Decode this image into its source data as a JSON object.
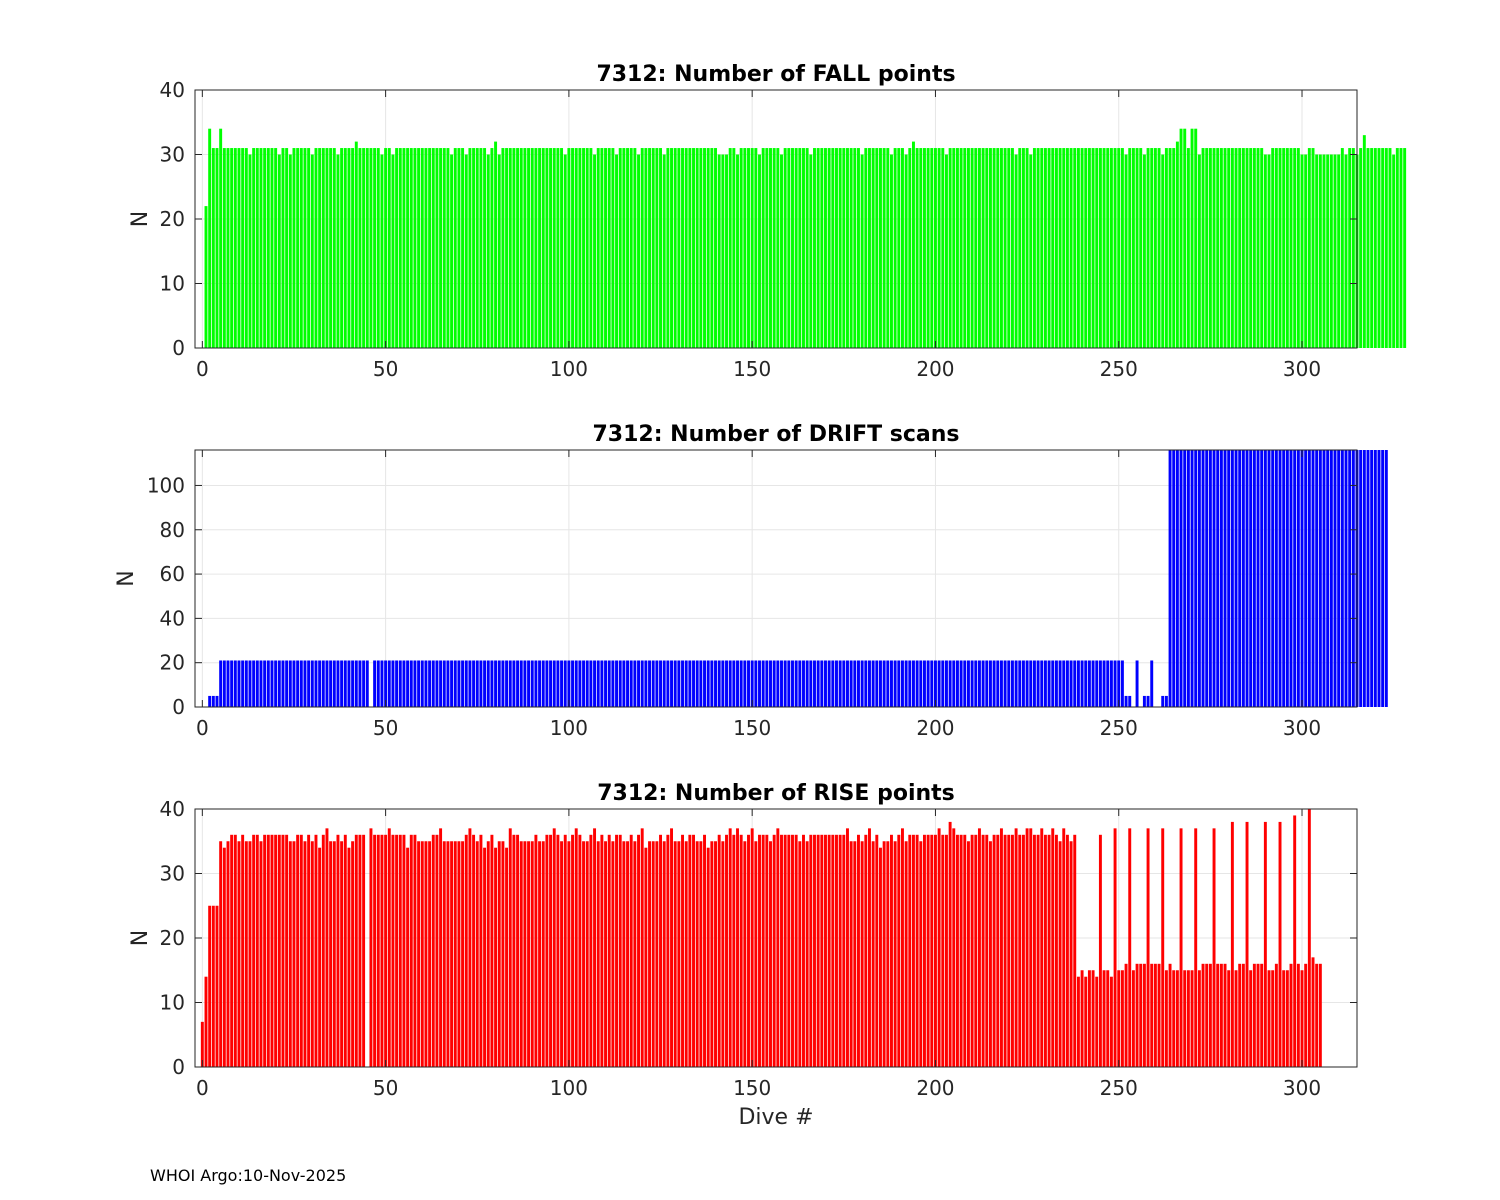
{
  "footer": "WHOI Argo:10-Nov-2025",
  "chart_data": [
    {
      "id": "fall",
      "type": "bar",
      "title": "7312: Number of FALL points",
      "xlabel": "",
      "ylabel": "N",
      "color": "#00ff00",
      "xlim": [
        -2,
        315
      ],
      "ylim": [
        0,
        40
      ],
      "xticks": [
        0,
        50,
        100,
        150,
        200,
        250,
        300
      ],
      "yticks": [
        0,
        10,
        20,
        30,
        40
      ],
      "grid": true,
      "x_start": 1,
      "values": [
        22,
        34,
        31,
        31,
        34,
        31,
        31,
        31,
        31,
        31,
        31,
        31,
        30,
        31,
        31,
        31,
        31,
        31,
        31,
        31,
        30,
        31,
        31,
        30,
        31,
        31,
        31,
        31,
        31,
        30,
        31,
        31,
        31,
        31,
        31,
        31,
        30,
        31,
        31,
        31,
        31,
        32,
        31,
        31,
        31,
        31,
        31,
        31,
        30,
        31,
        31,
        30,
        31,
        31,
        31,
        31,
        31,
        31,
        31,
        31,
        31,
        31,
        31,
        31,
        31,
        31,
        31,
        30,
        31,
        31,
        31,
        30,
        31,
        31,
        31,
        31,
        31,
        30,
        31,
        32,
        30,
        31,
        31,
        31,
        31,
        31,
        31,
        31,
        31,
        31,
        31,
        31,
        31,
        31,
        31,
        31,
        31,
        31,
        30,
        31,
        31,
        31,
        31,
        31,
        31,
        31,
        30,
        31,
        31,
        31,
        31,
        31,
        30,
        31,
        31,
        31,
        31,
        31,
        30,
        31,
        31,
        31,
        31,
        31,
        31,
        30,
        31,
        31,
        31,
        31,
        31,
        31,
        31,
        31,
        31,
        31,
        31,
        31,
        31,
        31,
        30,
        30,
        30,
        31,
        31,
        30,
        31,
        31,
        31,
        31,
        31,
        30,
        31,
        31,
        31,
        31,
        31,
        30,
        31,
        31,
        31,
        31,
        31,
        31,
        31,
        30,
        31,
        31,
        31,
        31,
        31,
        31,
        31,
        31,
        31,
        31,
        31,
        31,
        31,
        30,
        31,
        31,
        31,
        31,
        31,
        31,
        31,
        30,
        31,
        31,
        31,
        30,
        31,
        32,
        31,
        31,
        31,
        31,
        31,
        31,
        31,
        31,
        30,
        31,
        31,
        31,
        31,
        31,
        31,
        31,
        31,
        31,
        31,
        31,
        31,
        31,
        31,
        31,
        31,
        31,
        31,
        30,
        31,
        31,
        31,
        30,
        31,
        31,
        31,
        31,
        31,
        31,
        31,
        31,
        31,
        31,
        31,
        31,
        31,
        31,
        31,
        31,
        31,
        31,
        31,
        31,
        31,
        31,
        31,
        31,
        31,
        30,
        31,
        31,
        31,
        31,
        30,
        31,
        31,
        31,
        31,
        30,
        31,
        31,
        31,
        32,
        34,
        34,
        31,
        34,
        34,
        30,
        31,
        31,
        31,
        31,
        31,
        31,
        31,
        31,
        31,
        31,
        31,
        31,
        31,
        31,
        31,
        31,
        31,
        30,
        30,
        31,
        31,
        31,
        31,
        31,
        31,
        31,
        31,
        30,
        30,
        31,
        31,
        30,
        30,
        30,
        30,
        30,
        30,
        30,
        31,
        30,
        31,
        31,
        30,
        31,
        33,
        31,
        31,
        31,
        31,
        31,
        31,
        31,
        30,
        31,
        31,
        31
      ]
    },
    {
      "id": "drift",
      "type": "bar",
      "title": "7312: Number of DRIFT scans",
      "xlabel": "",
      "ylabel": "N",
      "color": "#0000ff",
      "xlim": [
        -2,
        315
      ],
      "ylim": [
        0,
        116
      ],
      "xticks": [
        0,
        50,
        100,
        150,
        200,
        250,
        300
      ],
      "yticks": [
        0,
        20,
        40,
        60,
        80,
        100
      ],
      "grid": true,
      "x_start": 1,
      "values": [
        0,
        5,
        5,
        5,
        21,
        21,
        21,
        21,
        21,
        21,
        21,
        21,
        21,
        21,
        21,
        21,
        21,
        21,
        21,
        21,
        21,
        21,
        21,
        21,
        21,
        21,
        21,
        21,
        21,
        21,
        21,
        21,
        21,
        21,
        21,
        21,
        21,
        21,
        21,
        21,
        21,
        21,
        21,
        21,
        21,
        0,
        21,
        21,
        21,
        21,
        21,
        21,
        21,
        21,
        21,
        21,
        21,
        21,
        21,
        21,
        21,
        21,
        21,
        21,
        21,
        21,
        21,
        21,
        21,
        21,
        21,
        21,
        21,
        21,
        21,
        21,
        21,
        21,
        21,
        21,
        21,
        21,
        21,
        21,
        21,
        21,
        21,
        21,
        21,
        21,
        21,
        21,
        21,
        21,
        21,
        21,
        21,
        21,
        21,
        21,
        21,
        21,
        21,
        21,
        21,
        21,
        21,
        21,
        21,
        21,
        21,
        21,
        21,
        21,
        21,
        21,
        21,
        21,
        21,
        21,
        21,
        21,
        21,
        21,
        21,
        21,
        21,
        21,
        21,
        21,
        21,
        21,
        21,
        21,
        21,
        21,
        21,
        21,
        21,
        21,
        21,
        21,
        21,
        21,
        21,
        21,
        21,
        21,
        21,
        21,
        21,
        21,
        21,
        21,
        21,
        21,
        21,
        21,
        21,
        21,
        21,
        21,
        21,
        21,
        21,
        21,
        21,
        21,
        21,
        21,
        21,
        21,
        21,
        21,
        21,
        21,
        21,
        21,
        21,
        21,
        21,
        21,
        21,
        21,
        21,
        21,
        21,
        21,
        21,
        21,
        21,
        21,
        21,
        21,
        21,
        21,
        21,
        21,
        21,
        21,
        21,
        21,
        21,
        21,
        21,
        21,
        21,
        21,
        21,
        21,
        21,
        21,
        21,
        21,
        21,
        21,
        21,
        21,
        21,
        21,
        21,
        21,
        21,
        21,
        21,
        21,
        21,
        21,
        21,
        21,
        21,
        21,
        21,
        21,
        21,
        21,
        21,
        21,
        21,
        21,
        21,
        21,
        21,
        21,
        21,
        21,
        21,
        21,
        21,
        21,
        21,
        5,
        5,
        0,
        21,
        0,
        5,
        5,
        21,
        0,
        0,
        5,
        5,
        116,
        116,
        116,
        116,
        116,
        116,
        116,
        116,
        116,
        116,
        116,
        116,
        116,
        116,
        116,
        116,
        116,
        116,
        116,
        116,
        116,
        116,
        116,
        116,
        116,
        116,
        116,
        116,
        116,
        116,
        116,
        116,
        116,
        116,
        116,
        116,
        116,
        116,
        116,
        116,
        116,
        116,
        116,
        116,
        116,
        116,
        116,
        116,
        116,
        116,
        116,
        116,
        116,
        116,
        116,
        116,
        116,
        116,
        116,
        116
      ]
    },
    {
      "id": "rise",
      "type": "bar",
      "title": "7312: Number of RISE points",
      "xlabel": "Dive #",
      "ylabel": "N",
      "color": "#ff0000",
      "xlim": [
        -2,
        315
      ],
      "ylim": [
        0,
        40
      ],
      "xticks": [
        0,
        50,
        100,
        150,
        200,
        250,
        300
      ],
      "yticks": [
        0,
        10,
        20,
        30,
        40
      ],
      "grid": true,
      "x_start": 0,
      "values": [
        7,
        14,
        25,
        25,
        25,
        35,
        34,
        35,
        36,
        36,
        35,
        36,
        35,
        35,
        36,
        36,
        35,
        36,
        36,
        36,
        36,
        36,
        36,
        36,
        35,
        35,
        36,
        36,
        35,
        36,
        35,
        36,
        34,
        36,
        37,
        35,
        35,
        36,
        35,
        36,
        34,
        35,
        36,
        36,
        36,
        0,
        37,
        36,
        36,
        36,
        36,
        37,
        36,
        36,
        36,
        36,
        34,
        36,
        36,
        35,
        35,
        35,
        35,
        36,
        36,
        37,
        35,
        35,
        35,
        35,
        35,
        35,
        36,
        37,
        36,
        35,
        36,
        34,
        35,
        36,
        34,
        35,
        35,
        34,
        37,
        36,
        36,
        35,
        35,
        35,
        35,
        36,
        35,
        35,
        36,
        36,
        37,
        36,
        35,
        36,
        35,
        36,
        37,
        36,
        35,
        35,
        36,
        37,
        35,
        36,
        35,
        36,
        35,
        36,
        36,
        35,
        35,
        36,
        35,
        36,
        37,
        34,
        35,
        35,
        35,
        36,
        35,
        36,
        37,
        35,
        35,
        36,
        35,
        36,
        36,
        35,
        35,
        36,
        34,
        35,
        35,
        36,
        35,
        36,
        37,
        36,
        37,
        36,
        35,
        36,
        37,
        35,
        36,
        36,
        36,
        35,
        36,
        37,
        36,
        36,
        36,
        36,
        36,
        35,
        36,
        35,
        36,
        36,
        36,
        36,
        36,
        36,
        36,
        36,
        36,
        36,
        37,
        35,
        35,
        36,
        35,
        36,
        37,
        35,
        36,
        34,
        35,
        35,
        36,
        35,
        36,
        37,
        35,
        36,
        36,
        36,
        35,
        36,
        36,
        36,
        36,
        37,
        36,
        36,
        38,
        37,
        36,
        36,
        36,
        35,
        36,
        36,
        37,
        36,
        36,
        35,
        36,
        36,
        37,
        36,
        36,
        36,
        37,
        36,
        36,
        37,
        37,
        36,
        36,
        37,
        36,
        36,
        37,
        36,
        35,
        37,
        36,
        35,
        36,
        14,
        15,
        14,
        15,
        15,
        14,
        36,
        15,
        15,
        14,
        37,
        15,
        15,
        16,
        37,
        15,
        16,
        16,
        16,
        37,
        16,
        16,
        16,
        37,
        15,
        16,
        15,
        15,
        37,
        15,
        15,
        15,
        37,
        15,
        16,
        16,
        16,
        37,
        16,
        16,
        16,
        15,
        38,
        15,
        16,
        16,
        38,
        15,
        16,
        16,
        16,
        38,
        15,
        15,
        16,
        38,
        15,
        15,
        16,
        39,
        16,
        15,
        16,
        40,
        17,
        16,
        16
      ]
    }
  ]
}
